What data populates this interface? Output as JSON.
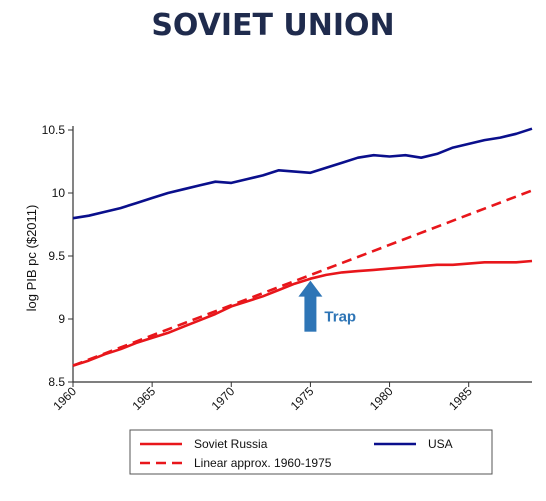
{
  "title": "SOVIET UNION",
  "chart_data": {
    "type": "line",
    "ylabel": "log PIB pc ($2011)",
    "xlabel": "",
    "xlim": [
      1960,
      1989
    ],
    "ylim": [
      8.5,
      10.5
    ],
    "x_ticks": [
      "1960",
      "1965",
      "1970",
      "1975",
      "1980",
      "1985"
    ],
    "y_ticks": [
      "8.5",
      "9",
      "9.5",
      "10",
      "10.5"
    ],
    "grid": false,
    "legend": "bottom",
    "colors": {
      "Soviet Russia": "#e8161b",
      "Linear approx. 1960-1975": "#e8161b",
      "USA": "#0a0f8c",
      "annotation": "#2e75b6"
    },
    "series": [
      {
        "name": "Soviet Russia",
        "style": "solid",
        "x": [
          1960,
          1961,
          1962,
          1963,
          1964,
          1965,
          1966,
          1967,
          1968,
          1969,
          1970,
          1971,
          1972,
          1973,
          1974,
          1975,
          1976,
          1977,
          1978,
          1979,
          1980,
          1981,
          1982,
          1983,
          1984,
          1985,
          1986,
          1987,
          1988,
          1989
        ],
        "y": [
          8.63,
          8.67,
          8.72,
          8.76,
          8.81,
          8.85,
          8.89,
          8.94,
          8.99,
          9.04,
          9.1,
          9.14,
          9.18,
          9.23,
          9.28,
          9.32,
          9.35,
          9.37,
          9.38,
          9.39,
          9.4,
          9.41,
          9.42,
          9.43,
          9.43,
          9.44,
          9.45,
          9.45,
          9.45,
          9.46
        ]
      },
      {
        "name": "Linear approx. 1960-1975",
        "style": "dashed",
        "x": [
          1960,
          1989
        ],
        "y": [
          8.63,
          10.02
        ]
      },
      {
        "name": "USA",
        "style": "solid",
        "x": [
          1960,
          1961,
          1962,
          1963,
          1964,
          1965,
          1966,
          1967,
          1968,
          1969,
          1970,
          1971,
          1972,
          1973,
          1974,
          1975,
          1976,
          1977,
          1978,
          1979,
          1980,
          1981,
          1982,
          1983,
          1984,
          1985,
          1986,
          1987,
          1988,
          1989
        ],
        "y": [
          9.8,
          9.82,
          9.85,
          9.88,
          9.92,
          9.96,
          10.0,
          10.03,
          10.06,
          10.09,
          10.08,
          10.11,
          10.14,
          10.18,
          10.17,
          10.16,
          10.2,
          10.24,
          10.28,
          10.3,
          10.29,
          10.3,
          10.28,
          10.31,
          10.36,
          10.39,
          10.42,
          10.44,
          10.47,
          10.51
        ]
      }
    ],
    "annotations": [
      {
        "text": "Trap",
        "x": 1975,
        "y": 9.32
      }
    ]
  }
}
